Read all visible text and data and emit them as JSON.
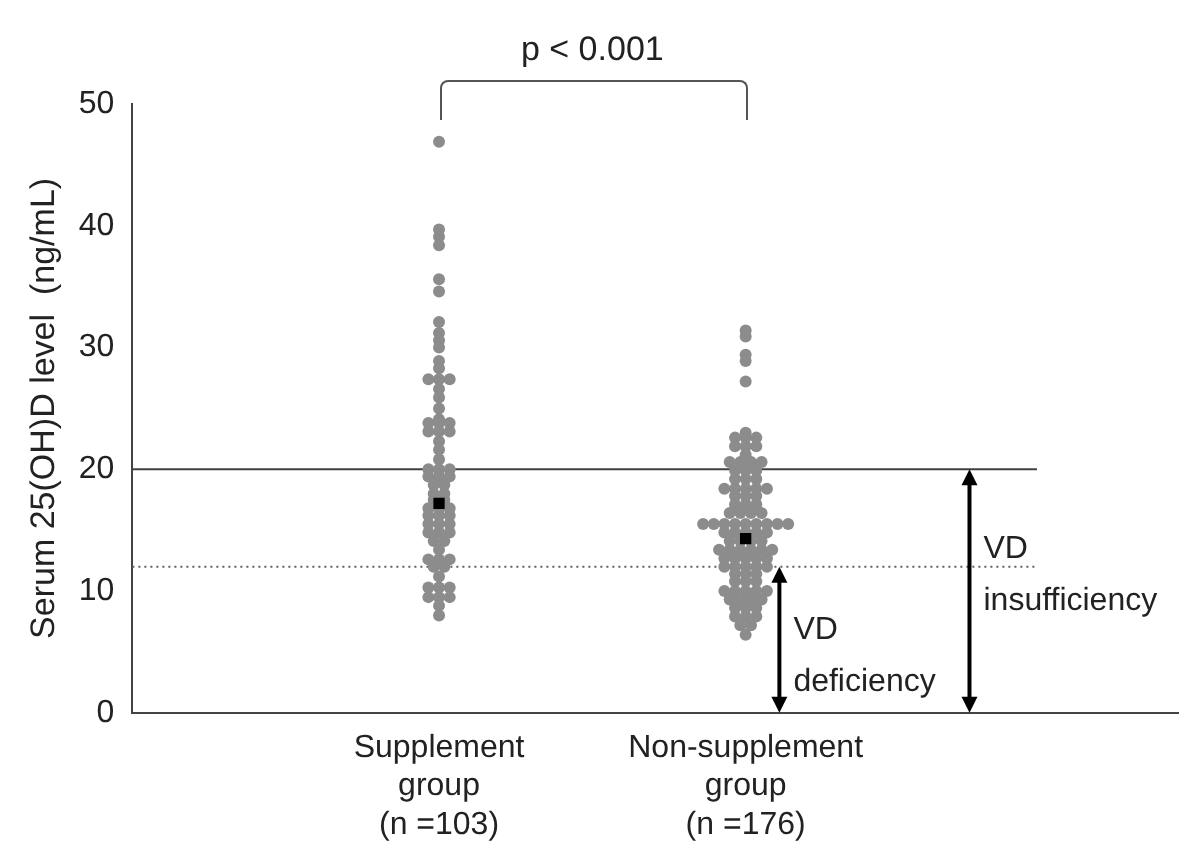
{
  "chart_data": {
    "type": "scatter",
    "ylabel": "Serum 25(OH)D level  (ng/mL)",
    "categories": [
      "Supplement\ngroup\n(n =103)",
      "Non-supplement\ngroup\n(n =176)"
    ],
    "ylim": [
      0,
      50
    ],
    "yticks": [
      0,
      10,
      20,
      30,
      40,
      50
    ],
    "grid": false,
    "legend": false,
    "marker": "circle",
    "series": [
      {
        "color": "#8c8c8c",
        "x": [
          "Supplement\ngroup\n(n =103)",
          "Supplement\ngroup\n(n =103)",
          "Supplement\ngroup\n(n =103)",
          "Supplement\ngroup\n(n =103)",
          "Supplement\ngroup\n(n =103)",
          "Supplement\ngroup\n(n =103)",
          "Supplement\ngroup\n(n =103)",
          "Supplement\ngroup\n(n =103)",
          "Supplement\ngroup\n(n =103)",
          "Supplement\ngroup\n(n =103)",
          "Supplement\ngroup\n(n =103)",
          "Supplement\ngroup\n(n =103)",
          "Supplement\ngroup\n(n =103)",
          "Supplement\ngroup\n(n =103)",
          "Supplement\ngroup\n(n =103)",
          "Supplement\ngroup\n(n =103)",
          "Supplement\ngroup\n(n =103)",
          "Supplement\ngroup\n(n =103)",
          "Supplement\ngroup\n(n =103)",
          "Supplement\ngroup\n(n =103)",
          "Supplement\ngroup\n(n =103)",
          "Supplement\ngroup\n(n =103)",
          "Supplement\ngroup\n(n =103)",
          "Supplement\ngroup\n(n =103)",
          "Supplement\ngroup\n(n =103)",
          "Supplement\ngroup\n(n =103)",
          "Supplement\ngroup\n(n =103)",
          "Supplement\ngroup\n(n =103)",
          "Supplement\ngroup\n(n =103)",
          "Supplement\ngroup\n(n =103)",
          "Supplement\ngroup\n(n =103)",
          "Supplement\ngroup\n(n =103)",
          "Supplement\ngroup\n(n =103)",
          "Supplement\ngroup\n(n =103)",
          "Supplement\ngroup\n(n =103)",
          "Supplement\ngroup\n(n =103)",
          "Supplement\ngroup\n(n =103)",
          "Supplement\ngroup\n(n =103)",
          "Supplement\ngroup\n(n =103)",
          "Supplement\ngroup\n(n =103)",
          "Supplement\ngroup\n(n =103)",
          "Supplement\ngroup\n(n =103)",
          "Supplement\ngroup\n(n =103)",
          "Supplement\ngroup\n(n =103)",
          "Supplement\ngroup\n(n =103)",
          "Supplement\ngroup\n(n =103)",
          "Supplement\ngroup\n(n =103)",
          "Supplement\ngroup\n(n =103)",
          "Supplement\ngroup\n(n =103)",
          "Supplement\ngroup\n(n =103)",
          "Supplement\ngroup\n(n =103)",
          "Supplement\ngroup\n(n =103)",
          "Supplement\ngroup\n(n =103)",
          "Supplement\ngroup\n(n =103)",
          "Supplement\ngroup\n(n =103)",
          "Supplement\ngroup\n(n =103)",
          "Supplement\ngroup\n(n =103)",
          "Supplement\ngroup\n(n =103)",
          "Supplement\ngroup\n(n =103)",
          "Supplement\ngroup\n(n =103)",
          "Supplement\ngroup\n(n =103)",
          "Supplement\ngroup\n(n =103)",
          "Supplement\ngroup\n(n =103)",
          "Supplement\ngroup\n(n =103)",
          "Supplement\ngroup\n(n =103)",
          "Supplement\ngroup\n(n =103)",
          "Supplement\ngroup\n(n =103)",
          "Supplement\ngroup\n(n =103)",
          "Supplement\ngroup\n(n =103)"
        ],
        "values": [
          46.9,
          39.7,
          39.1,
          38.4,
          35.6,
          34.6,
          32.1,
          31.2,
          30.6,
          30.0,
          28.9,
          28.3,
          27.4,
          27.4,
          27.4,
          26.6,
          25.9,
          25.0,
          24.1,
          23.8,
          23.8,
          23.8,
          23.1,
          23.1,
          23.1,
          22.3,
          21.6,
          20.8,
          20.0,
          20.0,
          20.0,
          19.4,
          19.4,
          19.4,
          18.7,
          18.7,
          18.0,
          18.0,
          17.5,
          17.5,
          16.8,
          16.8,
          16.8,
          16.2,
          16.2,
          16.2,
          15.5,
          15.5,
          15.5,
          14.8,
          14.8,
          14.8,
          14.1,
          14.1,
          13.4,
          12.6,
          12.6,
          12.6,
          12.0,
          12.0,
          11.2,
          10.3,
          10.3,
          10.3,
          9.5,
          9.5,
          9.5,
          8.8,
          8.0
        ]
      },
      {
        "color": "#8c8c8c",
        "x": [
          "Non-supplement\ngroup\n(n =176)",
          "Non-supplement\ngroup\n(n =176)",
          "Non-supplement\ngroup\n(n =176)",
          "Non-supplement\ngroup\n(n =176)",
          "Non-supplement\ngroup\n(n =176)",
          "Non-supplement\ngroup\n(n =176)",
          "Non-supplement\ngroup\n(n =176)",
          "Non-supplement\ngroup\n(n =176)",
          "Non-supplement\ngroup\n(n =176)",
          "Non-supplement\ngroup\n(n =176)",
          "Non-supplement\ngroup\n(n =176)",
          "Non-supplement\ngroup\n(n =176)",
          "Non-supplement\ngroup\n(n =176)",
          "Non-supplement\ngroup\n(n =176)",
          "Non-supplement\ngroup\n(n =176)",
          "Non-supplement\ngroup\n(n =176)",
          "Non-supplement\ngroup\n(n =176)",
          "Non-supplement\ngroup\n(n =176)",
          "Non-supplement\ngroup\n(n =176)",
          "Non-supplement\ngroup\n(n =176)",
          "Non-supplement\ngroup\n(n =176)",
          "Non-supplement\ngroup\n(n =176)",
          "Non-supplement\ngroup\n(n =176)",
          "Non-supplement\ngroup\n(n =176)",
          "Non-supplement\ngroup\n(n =176)",
          "Non-supplement\ngroup\n(n =176)",
          "Non-supplement\ngroup\n(n =176)",
          "Non-supplement\ngroup\n(n =176)",
          "Non-supplement\ngroup\n(n =176)",
          "Non-supplement\ngroup\n(n =176)",
          "Non-supplement\ngroup\n(n =176)",
          "Non-supplement\ngroup\n(n =176)",
          "Non-supplement\ngroup\n(n =176)",
          "Non-supplement\ngroup\n(n =176)",
          "Non-supplement\ngroup\n(n =176)",
          "Non-supplement\ngroup\n(n =176)",
          "Non-supplement\ngroup\n(n =176)",
          "Non-supplement\ngroup\n(n =176)",
          "Non-supplement\ngroup\n(n =176)",
          "Non-supplement\ngroup\n(n =176)",
          "Non-supplement\ngroup\n(n =176)",
          "Non-supplement\ngroup\n(n =176)",
          "Non-supplement\ngroup\n(n =176)",
          "Non-supplement\ngroup\n(n =176)",
          "Non-supplement\ngroup\n(n =176)",
          "Non-supplement\ngroup\n(n =176)",
          "Non-supplement\ngroup\n(n =176)",
          "Non-supplement\ngroup\n(n =176)",
          "Non-supplement\ngroup\n(n =176)",
          "Non-supplement\ngroup\n(n =176)",
          "Non-supplement\ngroup\n(n =176)",
          "Non-supplement\ngroup\n(n =176)",
          "Non-supplement\ngroup\n(n =176)",
          "Non-supplement\ngroup\n(n =176)",
          "Non-supplement\ngroup\n(n =176)",
          "Non-supplement\ngroup\n(n =176)",
          "Non-supplement\ngroup\n(n =176)",
          "Non-supplement\ngroup\n(n =176)",
          "Non-supplement\ngroup\n(n =176)",
          "Non-supplement\ngroup\n(n =176)",
          "Non-supplement\ngroup\n(n =176)",
          "Non-supplement\ngroup\n(n =176)",
          "Non-supplement\ngroup\n(n =176)",
          "Non-supplement\ngroup\n(n =176)",
          "Non-supplement\ngroup\n(n =176)",
          "Non-supplement\ngroup\n(n =176)",
          "Non-supplement\ngroup\n(n =176)",
          "Non-supplement\ngroup\n(n =176)",
          "Non-supplement\ngroup\n(n =176)",
          "Non-supplement\ngroup\n(n =176)",
          "Non-supplement\ngroup\n(n =176)",
          "Non-supplement\ngroup\n(n =176)",
          "Non-supplement\ngroup\n(n =176)",
          "Non-supplement\ngroup\n(n =176)",
          "Non-supplement\ngroup\n(n =176)",
          "Non-supplement\ngroup\n(n =176)",
          "Non-supplement\ngroup\n(n =176)",
          "Non-supplement\ngroup\n(n =176)",
          "Non-supplement\ngroup\n(n =176)",
          "Non-supplement\ngroup\n(n =176)",
          "Non-supplement\ngroup\n(n =176)",
          "Non-supplement\ngroup\n(n =176)",
          "Non-supplement\ngroup\n(n =176)",
          "Non-supplement\ngroup\n(n =176)",
          "Non-supplement\ngroup\n(n =176)",
          "Non-supplement\ngroup\n(n =176)",
          "Non-supplement\ngroup\n(n =176)",
          "Non-supplement\ngroup\n(n =176)",
          "Non-supplement\ngroup\n(n =176)",
          "Non-supplement\ngroup\n(n =176)",
          "Non-supplement\ngroup\n(n =176)",
          "Non-supplement\ngroup\n(n =176)",
          "Non-supplement\ngroup\n(n =176)",
          "Non-supplement\ngroup\n(n =176)",
          "Non-supplement\ngroup\n(n =176)",
          "Non-supplement\ngroup\n(n =176)"
        ],
        "values": [
          31.4,
          30.9,
          29.4,
          28.9,
          27.2,
          23.0,
          22.6,
          22.6,
          22.6,
          21.9,
          21.9,
          21.9,
          21.2,
          20.6,
          20.6,
          20.6,
          20.6,
          19.9,
          19.9,
          19.9,
          19.2,
          19.2,
          19.2,
          18.4,
          18.4,
          18.4,
          18.4,
          18.4,
          17.8,
          17.8,
          17.8,
          17.1,
          17.1,
          17.1,
          16.4,
          16.4,
          16.4,
          16.4,
          15.5,
          15.5,
          15.5,
          15.5,
          15.5,
          15.5,
          15.5,
          15.5,
          15.5,
          14.8,
          14.8,
          14.8,
          14.8,
          14.8,
          14.1,
          14.1,
          14.1,
          14.1,
          13.4,
          13.4,
          13.4,
          13.4,
          13.4,
          13.4,
          12.7,
          12.7,
          12.7,
          12.7,
          12.7,
          12.0,
          12.0,
          12.0,
          12.0,
          12.0,
          11.4,
          11.4,
          11.4,
          10.8,
          10.8,
          10.8,
          10.0,
          10.0,
          10.0,
          10.0,
          10.0,
          9.3,
          9.3,
          9.3,
          9.3,
          8.6,
          8.6,
          8.6,
          7.9,
          7.9,
          7.9,
          7.2,
          7.2,
          6.4
        ]
      },
      {
        "color": "#000000",
        "marker": "square",
        "x": [
          "Supplement\ngroup\n(n =103)",
          "Non-supplement\ngroup\n(n =176)"
        ],
        "values": [
          17.2,
          14.3
        ]
      }
    ],
    "ref_lines": [
      {
        "axis": "y",
        "value": 12,
        "color": "#606060",
        "line_style": "dotted"
      },
      {
        "axis": "y",
        "value": 20,
        "color": "#404040",
        "line_style": "solid"
      }
    ],
    "annotations": [
      "p < 0.001",
      {
        "text": "VD\ndeficiency",
        "y": 12
      },
      "VD\ninsufficiency"
    ]
  }
}
